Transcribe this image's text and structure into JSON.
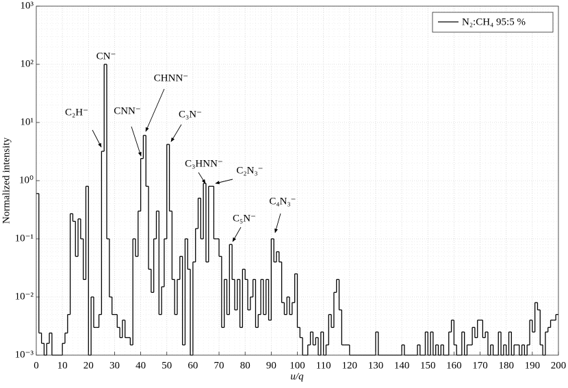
{
  "chart_data": {
    "type": "stairs",
    "xlabel": "u/q",
    "ylabel": "Normalized intensity",
    "xlim": [
      0,
      200
    ],
    "ylim": [
      0.001,
      1000
    ],
    "log_y": true,
    "grid": true,
    "minor_grid": true,
    "legend": "top-right",
    "xticks": [
      0,
      10,
      20,
      30,
      40,
      50,
      60,
      70,
      80,
      90,
      100,
      110,
      120,
      130,
      140,
      150,
      160,
      170,
      180,
      190,
      200
    ],
    "yticks": [
      {
        "value": 0.001,
        "label": "10⁻³"
      },
      {
        "value": 0.01,
        "label": "10⁻²"
      },
      {
        "value": 0.1,
        "label": "10⁻¹"
      },
      {
        "value": 1,
        "label": "10⁰"
      },
      {
        "value": 10,
        "label": "10¹"
      },
      {
        "value": 100,
        "label": "10²"
      },
      {
        "value": 1000,
        "label": "10³"
      }
    ],
    "annotations": [
      "CN⁻",
      "C₂H⁻",
      "CNN⁻",
      "CHNN⁻",
      "C₃N⁻",
      "C₃HNN⁻",
      "C₂N₃⁻",
      "C₅N⁻",
      "C₄N₃⁻"
    ],
    "x": [
      0,
      1,
      2,
      3,
      4,
      5,
      6,
      7,
      8,
      9,
      10,
      11,
      12,
      13,
      14,
      15,
      16,
      17,
      18,
      19,
      20,
      21,
      22,
      23,
      24,
      25,
      26,
      27,
      28,
      29,
      30,
      31,
      32,
      33,
      34,
      35,
      36,
      37,
      38,
      39,
      40,
      41,
      42,
      43,
      44,
      45,
      46,
      47,
      48,
      49,
      50,
      51,
      52,
      53,
      54,
      55,
      56,
      57,
      58,
      59,
      60,
      61,
      62,
      63,
      64,
      65,
      66,
      67,
      68,
      69,
      70,
      71,
      72,
      73,
      74,
      75,
      76,
      77,
      78,
      79,
      80,
      81,
      82,
      83,
      84,
      85,
      86,
      87,
      88,
      89,
      90,
      91,
      92,
      93,
      94,
      95,
      96,
      97,
      98,
      99,
      100,
      101,
      102,
      103,
      104,
      105,
      106,
      107,
      108,
      109,
      110,
      111,
      112,
      113,
      114,
      115,
      116,
      117,
      118,
      119,
      120,
      121,
      122,
      123,
      124,
      125,
      126,
      127,
      128,
      129,
      130,
      131,
      132,
      133,
      134,
      135,
      136,
      137,
      138,
      139,
      140,
      141,
      142,
      143,
      144,
      145,
      146,
      147,
      148,
      149,
      150,
      151,
      152,
      153,
      154,
      155,
      156,
      157,
      158,
      159,
      160,
      161,
      162,
      163,
      164,
      165,
      166,
      167,
      168,
      169,
      170,
      171,
      172,
      173,
      174,
      175,
      176,
      177,
      178,
      179,
      180,
      181,
      182,
      183,
      184,
      185,
      186,
      187,
      188,
      189,
      190,
      191,
      192,
      193,
      194,
      195,
      196,
      197,
      198,
      199
    ],
    "series": [
      {
        "name": "N₂:CH₄ 95:5 %",
        "color": "#000000",
        "values": [
          0.6,
          0.0024,
          0.0016,
          0.001,
          0.0016,
          0.0024,
          0.001,
          0.001,
          0.001,
          0.001,
          0.0016,
          0.0024,
          0.005,
          0.27,
          0.2,
          0.05,
          0.22,
          0.1,
          0.02,
          0.8,
          0.001,
          0.01,
          0.003,
          0.003,
          0.005,
          3.2,
          100,
          0.1,
          0.01,
          0.005,
          0.005,
          0.003,
          0.002,
          0.004,
          0.002,
          0.002,
          0.0015,
          0.1,
          0.05,
          0.3,
          2.4,
          6,
          0.8,
          0.03,
          0.012,
          0.1,
          0.3,
          0.005,
          0.015,
          0.1,
          4.2,
          0.3,
          0.02,
          0.005,
          0.02,
          0.05,
          0.0015,
          0.1,
          0.03,
          0.001,
          0.04,
          0.15,
          0.5,
          0.1,
          0.9,
          0.04,
          0.8,
          0.8,
          0.1,
          0.1,
          0.05,
          0.003,
          0.02,
          0.005,
          0.08,
          0.02,
          0.006,
          0.02,
          0.003,
          0.03,
          0.02,
          0.006,
          0.01,
          0.02,
          0.003,
          0.005,
          0.02,
          0.005,
          0.02,
          0.004,
          0.1,
          0.04,
          0.06,
          0.04,
          0.008,
          0.005,
          0.01,
          0.005,
          0.008,
          0.025,
          0.003,
          0.002,
          0.001,
          0.001,
          0.0015,
          0.0025,
          0.0015,
          0.002,
          0.001,
          0.0025,
          0.001,
          0.0015,
          0.005,
          0.003,
          0.012,
          0.02,
          0.006,
          0.0015,
          0.0015,
          0.0015,
          0.001,
          0.001,
          0.001,
          0.001,
          0.001,
          0.001,
          0.001,
          0.001,
          0.001,
          0.001,
          0.0025,
          0.001,
          0.001,
          0.001,
          0.001,
          0.001,
          0.001,
          0.001,
          0.001,
          0.001,
          0.0015,
          0.001,
          0.001,
          0.001,
          0.001,
          0.001,
          0.0015,
          0.001,
          0.001,
          0.0025,
          0.001,
          0.0025,
          0.001,
          0.0015,
          0.001,
          0.0015,
          0.001,
          0.001,
          0.0025,
          0.004,
          0.0015,
          0.001,
          0.001,
          0.0025,
          0.001,
          0.0015,
          0.0015,
          0.003,
          0.002,
          0.004,
          0.004,
          0.002,
          0.0025,
          0.001,
          0.0015,
          0.001,
          0.001,
          0.0025,
          0.001,
          0.0015,
          0.001,
          0.0025,
          0.001,
          0.0015,
          0.0015,
          0.001,
          0.0015,
          0.001,
          0.0015,
          0.004,
          0.0025,
          0.008,
          0.006,
          0.0015,
          0.001,
          0.0025,
          0.003,
          0.004,
          0.004,
          0.005
        ]
      }
    ]
  }
}
